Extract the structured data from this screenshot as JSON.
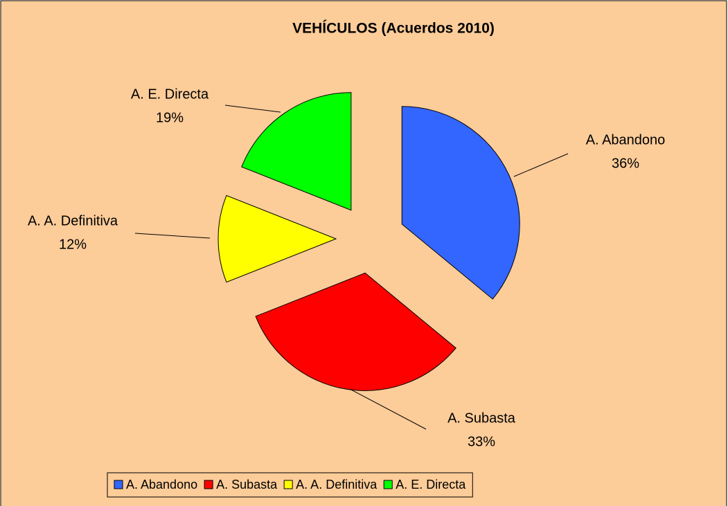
{
  "chart_data": {
    "type": "pie",
    "title": "VEHÍCULOS (Acuerdos 2010)",
    "categories": [
      "A. Abandono",
      "A. Subasta",
      "A. A. Definitiva",
      "A. E. Directa"
    ],
    "values": [
      36,
      33,
      12,
      19
    ],
    "value_labels": [
      "36%",
      "33%",
      "12%",
      "19%"
    ],
    "colors": [
      "#3366ff",
      "#ff0000",
      "#ffff00",
      "#00ff00"
    ],
    "legend": "bottom"
  }
}
